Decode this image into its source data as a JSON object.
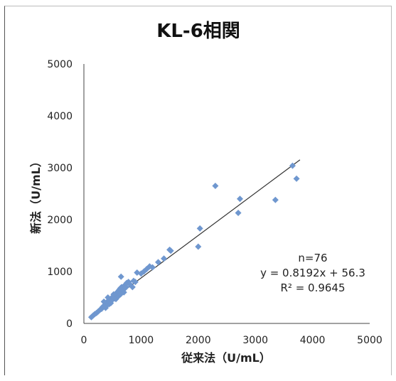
{
  "chart_data": {
    "type": "scatter",
    "title": "KL-6相関",
    "xlabel": "従来法（U/mL）",
    "ylabel": "新法（U/mL）",
    "xlim": [
      0,
      5000
    ],
    "ylim": [
      0,
      5000
    ],
    "xticks": [
      "0",
      "1000",
      "2000",
      "3000",
      "4000",
      "5000"
    ],
    "yticks": [
      "0",
      "1000",
      "2000",
      "3000",
      "4000",
      "5000"
    ],
    "marker_color": "#6f97cf",
    "trendline": {
      "slope": 0.8192,
      "intercept": 56.3,
      "x_range": [
        100,
        3780
      ],
      "color": "#333333"
    },
    "annotations": [
      "n=76",
      "y = 0.8192x + 56.3",
      "R² = 0.9645"
    ],
    "points": [
      [
        130,
        120
      ],
      [
        160,
        150
      ],
      [
        190,
        180
      ],
      [
        220,
        200
      ],
      [
        250,
        230
      ],
      [
        280,
        260
      ],
      [
        310,
        280
      ],
      [
        330,
        320
      ],
      [
        350,
        330
      ],
      [
        370,
        360
      ],
      [
        390,
        340
      ],
      [
        400,
        380
      ],
      [
        410,
        420
      ],
      [
        420,
        400
      ],
      [
        430,
        430
      ],
      [
        440,
        370
      ],
      [
        450,
        450
      ],
      [
        460,
        410
      ],
      [
        470,
        470
      ],
      [
        480,
        440
      ],
      [
        490,
        480
      ],
      [
        500,
        460
      ],
      [
        510,
        520
      ],
      [
        520,
        500
      ],
      [
        530,
        480
      ],
      [
        540,
        540
      ],
      [
        550,
        510
      ],
      [
        560,
        560
      ],
      [
        570,
        530
      ],
      [
        580,
        600
      ],
      [
        590,
        550
      ],
      [
        600,
        620
      ],
      [
        610,
        580
      ],
      [
        620,
        650
      ],
      [
        630,
        600
      ],
      [
        640,
        680
      ],
      [
        650,
        640
      ],
      [
        660,
        700
      ],
      [
        680,
        660
      ],
      [
        700,
        720
      ],
      [
        720,
        680
      ],
      [
        750,
        780
      ],
      [
        780,
        800
      ],
      [
        800,
        760
      ],
      [
        850,
        700
      ],
      [
        870,
        820
      ],
      [
        900,
        800
      ],
      [
        650,
        900
      ],
      [
        930,
        980
      ],
      [
        1000,
        960
      ],
      [
        1050,
        1000
      ],
      [
        1100,
        1050
      ],
      [
        1150,
        1100
      ],
      [
        1200,
        1080
      ],
      [
        1300,
        1180
      ],
      [
        1400,
        1250
      ],
      [
        1500,
        1420
      ],
      [
        1520,
        1400
      ],
      [
        2000,
        1480
      ],
      [
        2030,
        1830
      ],
      [
        2300,
        2650
      ],
      [
        2700,
        2130
      ],
      [
        2730,
        2400
      ],
      [
        3350,
        2380
      ],
      [
        3650,
        3040
      ],
      [
        3720,
        2790
      ],
      [
        350,
        420
      ],
      [
        380,
        300
      ],
      [
        420,
        500
      ],
      [
        470,
        390
      ],
      [
        520,
        560
      ],
      [
        560,
        470
      ],
      [
        600,
        520
      ],
      [
        640,
        560
      ],
      [
        700,
        600
      ],
      [
        740,
        700
      ]
    ]
  }
}
